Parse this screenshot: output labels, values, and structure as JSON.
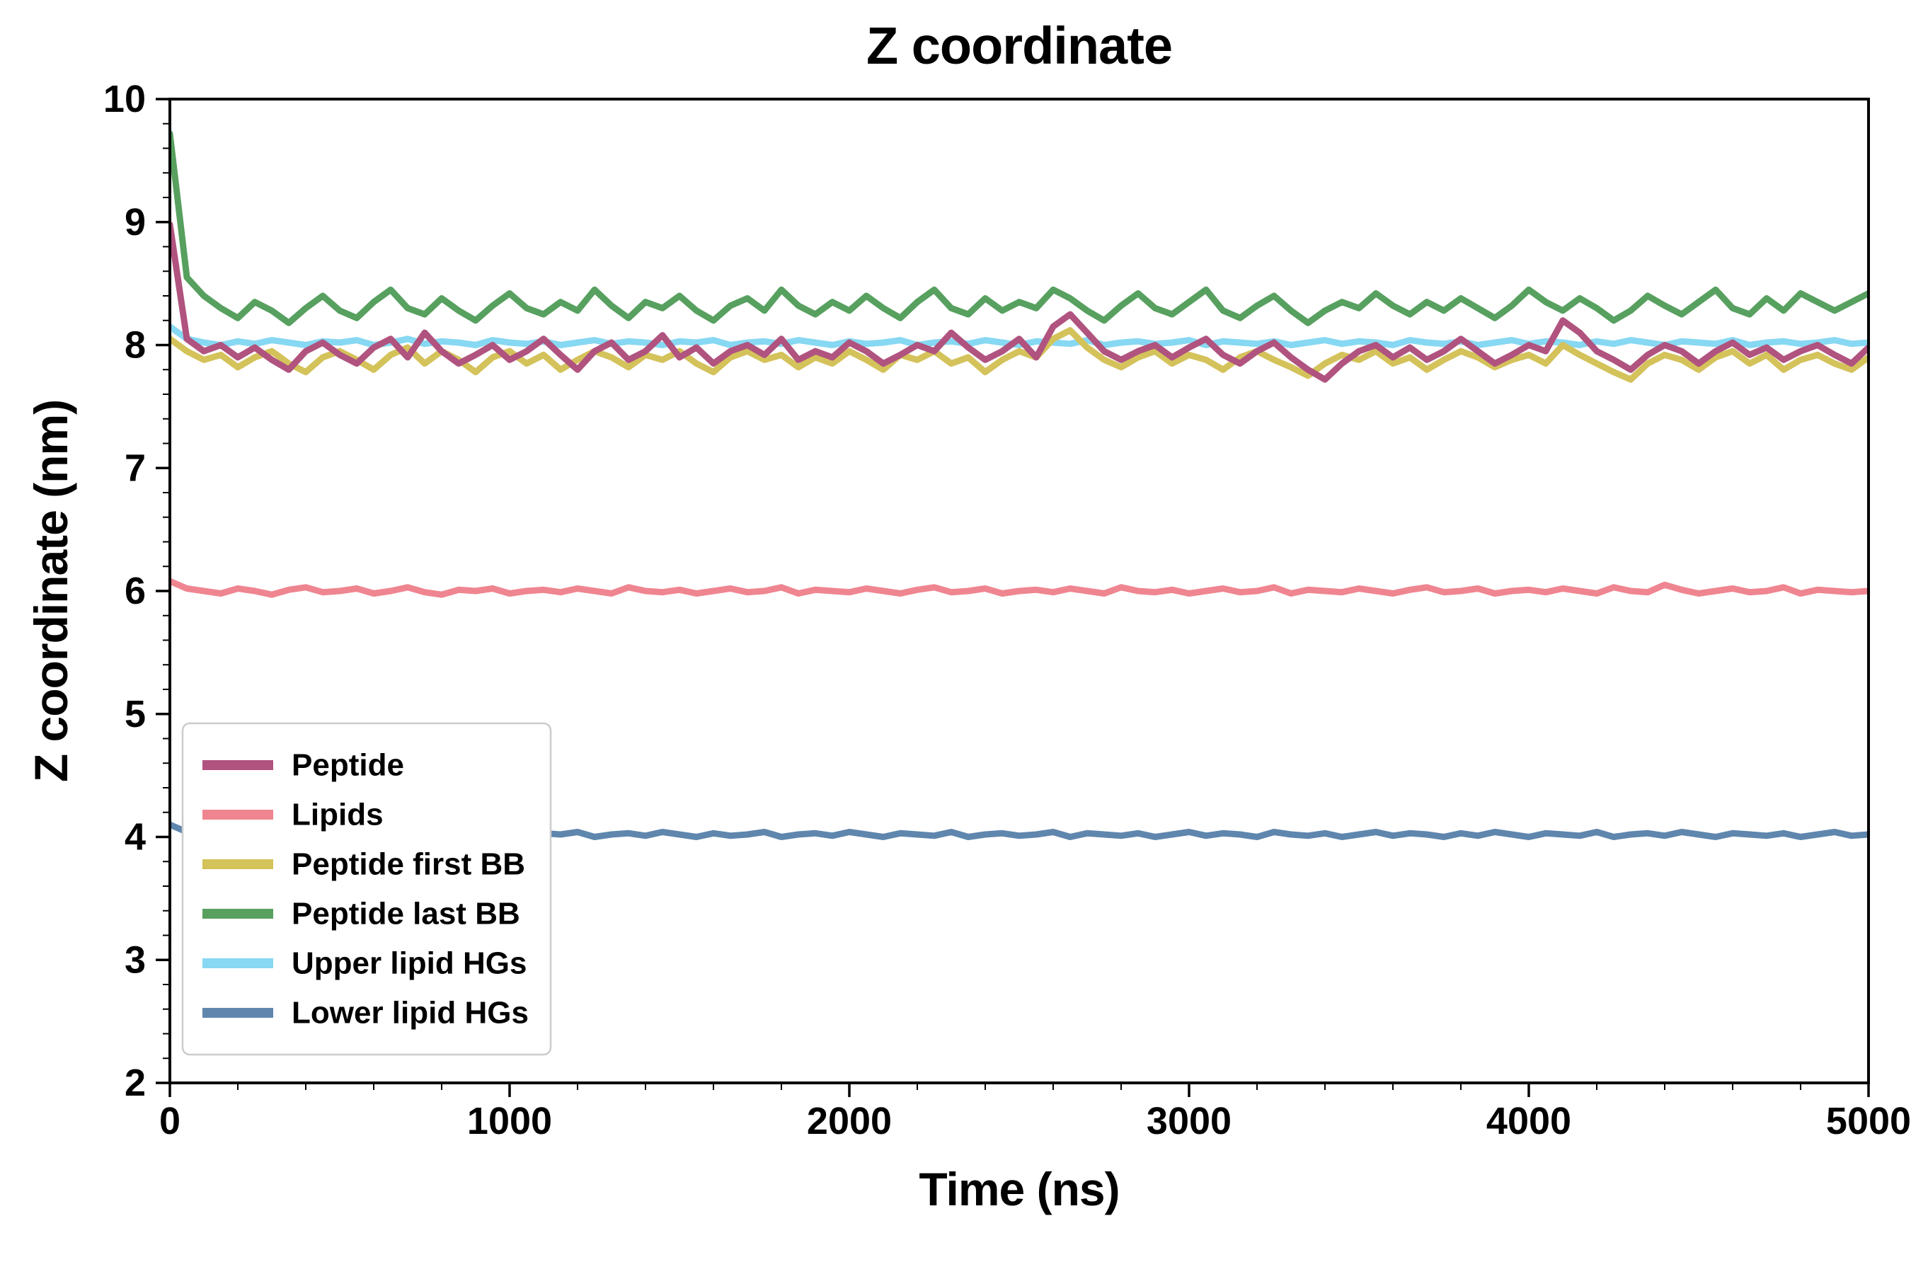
{
  "figure": {
    "title": "Z coordinate",
    "x_label": "Time (ns)",
    "y_label": "Z coordinate (nm)"
  },
  "colors": {
    "axis": "#000000",
    "background": "#ffffff",
    "legend_border": "#cccccc",
    "legend_background": "#ffffff",
    "text": "#000000"
  },
  "chart_data": {
    "type": "line",
    "title": "Z coordinate",
    "xlabel": "Time (ns)",
    "ylabel": "Z coordinate (nm)",
    "xlim": [
      0,
      5000
    ],
    "ylim": [
      2,
      10
    ],
    "x_ticks": [
      0,
      1000,
      2000,
      3000,
      4000,
      5000
    ],
    "y_ticks": [
      2,
      3,
      4,
      5,
      6,
      7,
      8,
      9,
      10
    ],
    "x_minor_step": 200,
    "y_minor_step": 0.2,
    "grid": false,
    "legend_position": "lower-left",
    "x_start": 0,
    "x_step": 50,
    "series": [
      {
        "id": "peptide",
        "name": "Peptide",
        "color": "#b0537f",
        "z": 6,
        "values": [
          8.98,
          8.05,
          7.95,
          8.0,
          7.9,
          7.98,
          7.88,
          7.8,
          7.95,
          8.02,
          7.92,
          7.85,
          7.98,
          8.05,
          7.9,
          8.1,
          7.95,
          7.85,
          7.92,
          8.0,
          7.88,
          7.95,
          8.05,
          7.92,
          7.8,
          7.95,
          8.02,
          7.88,
          7.95,
          8.08,
          7.9,
          7.98,
          7.85,
          7.95,
          8.0,
          7.92,
          8.05,
          7.88,
          7.95,
          7.9,
          8.02,
          7.95,
          7.85,
          7.92,
          8.0,
          7.95,
          8.1,
          7.98,
          7.88,
          7.95,
          8.05,
          7.9,
          8.15,
          8.25,
          8.1,
          7.95,
          7.88,
          7.95,
          8.0,
          7.9,
          7.98,
          8.05,
          7.92,
          7.85,
          7.95,
          8.02,
          7.9,
          7.8,
          7.72,
          7.85,
          7.95,
          8.0,
          7.9,
          7.98,
          7.88,
          7.95,
          8.05,
          7.95,
          7.85,
          7.92,
          8.0,
          7.95,
          8.2,
          8.1,
          7.95,
          7.88,
          7.8,
          7.92,
          8.0,
          7.95,
          7.85,
          7.95,
          8.02,
          7.92,
          7.98,
          7.88,
          7.95,
          8.0,
          7.92,
          7.85,
          7.98
        ]
      },
      {
        "id": "lipids",
        "name": "Lipids",
        "color": "#ef8590",
        "z": 4,
        "values": [
          6.08,
          6.02,
          6.0,
          5.98,
          6.02,
          6.0,
          5.97,
          6.01,
          6.03,
          5.99,
          6.0,
          6.02,
          5.98,
          6.0,
          6.03,
          5.99,
          5.97,
          6.01,
          6.0,
          6.02,
          5.98,
          6.0,
          6.01,
          5.99,
          6.02,
          6.0,
          5.98,
          6.03,
          6.0,
          5.99,
          6.01,
          5.98,
          6.0,
          6.02,
          5.99,
          6.0,
          6.03,
          5.98,
          6.01,
          6.0,
          5.99,
          6.02,
          6.0,
          5.98,
          6.01,
          6.03,
          5.99,
          6.0,
          6.02,
          5.98,
          6.0,
          6.01,
          5.99,
          6.02,
          6.0,
          5.98,
          6.03,
          6.0,
          5.99,
          6.01,
          5.98,
          6.0,
          6.02,
          5.99,
          6.0,
          6.03,
          5.98,
          6.01,
          6.0,
          5.99,
          6.02,
          6.0,
          5.98,
          6.01,
          6.03,
          5.99,
          6.0,
          6.02,
          5.98,
          6.0,
          6.01,
          5.99,
          6.02,
          6.0,
          5.98,
          6.03,
          6.0,
          5.99,
          6.05,
          6.01,
          5.98,
          6.0,
          6.02,
          5.99,
          6.0,
          6.03,
          5.98,
          6.01,
          6.0,
          5.99,
          6.0
        ]
      },
      {
        "id": "peptide_first_bb",
        "name": "Peptide first BB",
        "color": "#d4c25a",
        "z": 2,
        "values": [
          8.05,
          7.95,
          7.88,
          7.92,
          7.82,
          7.9,
          7.95,
          7.85,
          7.78,
          7.9,
          7.95,
          7.88,
          7.8,
          7.92,
          7.98,
          7.85,
          7.95,
          7.88,
          7.78,
          7.9,
          7.95,
          7.85,
          7.92,
          7.8,
          7.88,
          7.95,
          7.9,
          7.82,
          7.92,
          7.88,
          7.95,
          7.85,
          7.78,
          7.9,
          7.95,
          7.88,
          7.92,
          7.82,
          7.9,
          7.85,
          7.95,
          7.88,
          7.8,
          7.92,
          7.88,
          7.95,
          7.85,
          7.9,
          7.78,
          7.88,
          7.95,
          7.9,
          8.05,
          8.12,
          7.98,
          7.88,
          7.82,
          7.9,
          7.95,
          7.85,
          7.92,
          7.88,
          7.8,
          7.9,
          7.95,
          7.88,
          7.82,
          7.75,
          7.85,
          7.92,
          7.88,
          7.95,
          7.85,
          7.9,
          7.8,
          7.88,
          7.95,
          7.9,
          7.82,
          7.88,
          7.92,
          7.85,
          8.0,
          7.92,
          7.85,
          7.78,
          7.72,
          7.85,
          7.92,
          7.88,
          7.8,
          7.9,
          7.95,
          7.85,
          7.92,
          7.8,
          7.88,
          7.92,
          7.85,
          7.8,
          7.9
        ]
      },
      {
        "id": "peptide_last_bb",
        "name": "Peptide last BB",
        "color": "#57a05f",
        "z": 3,
        "values": [
          9.72,
          8.55,
          8.4,
          8.3,
          8.22,
          8.35,
          8.28,
          8.18,
          8.3,
          8.4,
          8.28,
          8.22,
          8.35,
          8.45,
          8.3,
          8.25,
          8.38,
          8.28,
          8.2,
          8.32,
          8.42,
          8.3,
          8.25,
          8.35,
          8.28,
          8.45,
          8.32,
          8.22,
          8.35,
          8.3,
          8.4,
          8.28,
          8.2,
          8.32,
          8.38,
          8.28,
          8.45,
          8.32,
          8.25,
          8.35,
          8.28,
          8.4,
          8.3,
          8.22,
          8.35,
          8.45,
          8.3,
          8.25,
          8.38,
          8.28,
          8.35,
          8.3,
          8.45,
          8.38,
          8.28,
          8.2,
          8.32,
          8.42,
          8.3,
          8.25,
          8.35,
          8.45,
          8.28,
          8.22,
          8.32,
          8.4,
          8.28,
          8.18,
          8.28,
          8.35,
          8.3,
          8.42,
          8.32,
          8.25,
          8.35,
          8.28,
          8.38,
          8.3,
          8.22,
          8.32,
          8.45,
          8.35,
          8.28,
          8.38,
          8.3,
          8.2,
          8.28,
          8.4,
          8.32,
          8.25,
          8.35,
          8.45,
          8.3,
          8.25,
          8.38,
          8.28,
          8.42,
          8.35,
          8.28,
          8.35,
          8.42
        ]
      },
      {
        "id": "upper_lipid_hgs",
        "name": "Upper lipid HGs",
        "color": "#87d8f2",
        "z": 1,
        "values": [
          8.15,
          8.05,
          8.02,
          8.0,
          8.03,
          8.01,
          8.04,
          8.02,
          8.0,
          8.03,
          8.02,
          8.04,
          8.0,
          8.02,
          8.05,
          8.01,
          8.03,
          8.02,
          8.0,
          8.04,
          8.02,
          8.01,
          8.03,
          8.0,
          8.02,
          8.04,
          8.01,
          8.03,
          8.02,
          8.0,
          8.03,
          8.02,
          8.04,
          8.0,
          8.02,
          8.03,
          8.01,
          8.04,
          8.02,
          8.0,
          8.03,
          8.01,
          8.02,
          8.04,
          8.0,
          8.02,
          8.03,
          8.01,
          8.04,
          8.02,
          8.0,
          8.03,
          8.02,
          8.01,
          8.04,
          8.0,
          8.02,
          8.03,
          8.01,
          8.02,
          8.04,
          8.0,
          8.03,
          8.02,
          8.01,
          8.03,
          8.0,
          8.02,
          8.04,
          8.01,
          8.03,
          8.02,
          8.0,
          8.04,
          8.02,
          8.01,
          8.03,
          8.0,
          8.02,
          8.04,
          8.01,
          8.03,
          8.02,
          8.0,
          8.03,
          8.01,
          8.04,
          8.02,
          8.0,
          8.03,
          8.02,
          8.01,
          8.04,
          8.0,
          8.02,
          8.03,
          8.01,
          8.02,
          8.04,
          8.01,
          8.02
        ]
      },
      {
        "id": "lower_lipid_hgs",
        "name": "Lower lipid HGs",
        "color": "#5f86ad",
        "z": 5,
        "values": [
          4.1,
          4.04,
          4.02,
          4.0,
          4.03,
          4.01,
          4.04,
          4.02,
          4.0,
          4.03,
          4.02,
          4.0,
          4.04,
          4.02,
          4.01,
          4.03,
          4.0,
          4.02,
          4.04,
          4.01,
          4.02,
          4.0,
          4.03,
          4.02,
          4.04,
          4.0,
          4.02,
          4.03,
          4.01,
          4.04,
          4.02,
          4.0,
          4.03,
          4.01,
          4.02,
          4.04,
          4.0,
          4.02,
          4.03,
          4.01,
          4.04,
          4.02,
          4.0,
          4.03,
          4.02,
          4.01,
          4.04,
          4.0,
          4.02,
          4.03,
          4.01,
          4.02,
          4.04,
          4.0,
          4.03,
          4.02,
          4.01,
          4.03,
          4.0,
          4.02,
          4.04,
          4.01,
          4.03,
          4.02,
          4.0,
          4.04,
          4.02,
          4.01,
          4.03,
          4.0,
          4.02,
          4.04,
          4.01,
          4.03,
          4.02,
          4.0,
          4.03,
          4.01,
          4.04,
          4.02,
          4.0,
          4.03,
          4.02,
          4.01,
          4.04,
          4.0,
          4.02,
          4.03,
          4.01,
          4.04,
          4.02,
          4.0,
          4.03,
          4.02,
          4.01,
          4.03,
          4.0,
          4.02,
          4.04,
          4.01,
          4.02
        ]
      }
    ]
  }
}
